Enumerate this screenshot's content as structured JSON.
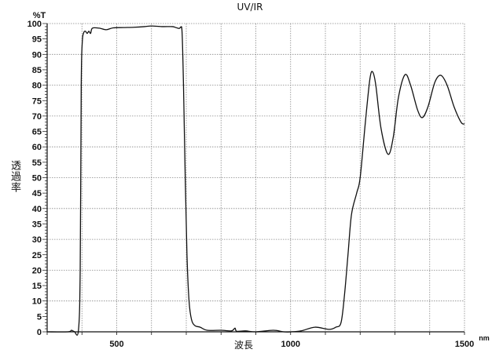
{
  "chart_data": {
    "type": "line",
    "title": "UV/IR",
    "xlabel": "波長",
    "x_unit": "nm",
    "ylabel": "透過率",
    "y_unit": "%T",
    "xlim": [
      300,
      1500
    ],
    "ylim": [
      0,
      100
    ],
    "x_ticks": [
      500,
      1000,
      1500
    ],
    "x_grid_step": 100,
    "y_ticks": [
      0,
      5,
      10,
      15,
      20,
      25,
      30,
      35,
      40,
      45,
      50,
      55,
      60,
      65,
      70,
      75,
      80,
      85,
      90,
      95,
      100
    ],
    "y_grid_step": 10,
    "grid": true,
    "line_color": "#111111",
    "series": [
      {
        "x": [
          300,
          360,
          370,
          378,
          390,
          395,
          398,
          401,
          405,
          410,
          415,
          420,
          425,
          430,
          450,
          470,
          490,
          520,
          550,
          580,
          600,
          630,
          660,
          670,
          680,
          684,
          688,
          692,
          697,
          702,
          708,
          715,
          725,
          740,
          760,
          800,
          830,
          840,
          845,
          870,
          900,
          950,
          980,
          1000,
          1030,
          1070,
          1110,
          1130,
          1145,
          1155,
          1165,
          1175,
          1190,
          1200,
          1215,
          1228,
          1236,
          1245,
          1260,
          1280,
          1295,
          1310,
          1329,
          1345,
          1365,
          1379,
          1395,
          1415,
          1432,
          1450,
          1470,
          1490,
          1500
        ],
        "y": [
          0,
          0,
          0.5,
          0.1,
          0.5,
          20,
          80,
          94,
          97,
          97.5,
          96.8,
          97.5,
          96.8,
          98.5,
          98.5,
          98,
          98.6,
          98.7,
          98.8,
          99,
          99.2,
          99,
          99,
          98.7,
          98.4,
          98.8,
          97,
          80,
          50,
          25,
          10,
          4,
          2,
          1.5,
          0.5,
          0.5,
          0.3,
          1.2,
          0.2,
          0.3,
          0,
          0.5,
          0,
          0,
          0.3,
          1.5,
          0.8,
          1.5,
          3,
          12,
          25,
          38,
          45,
          50,
          68,
          82,
          84.3,
          80,
          66,
          57.6,
          63,
          76,
          83.4,
          80,
          72,
          69.5,
          73,
          81,
          83.2,
          80,
          73,
          68,
          67.4
        ]
      }
    ]
  }
}
